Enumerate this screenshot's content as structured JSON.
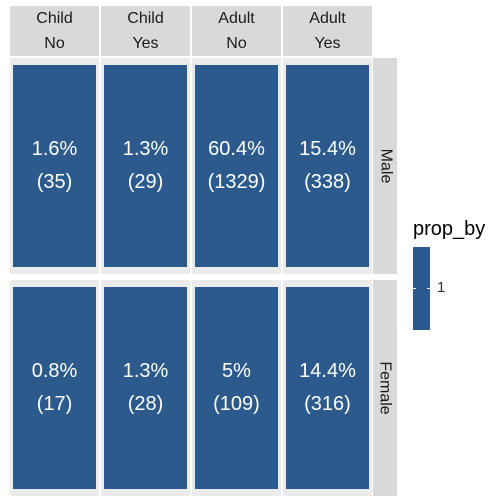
{
  "chart_data": {
    "type": "heatmap",
    "fill_color": "#2c5a8c",
    "columns": [
      {
        "line1": "Child",
        "line2": "No"
      },
      {
        "line1": "Child",
        "line2": "Yes"
      },
      {
        "line1": "Adult",
        "line2": "No"
      },
      {
        "line1": "Adult",
        "line2": "Yes"
      }
    ],
    "rows": [
      "Male",
      "Female"
    ],
    "cells": [
      [
        {
          "pct": "1.6%",
          "count": "(35)"
        },
        {
          "pct": "1.3%",
          "count": "(29)"
        },
        {
          "pct": "60.4%",
          "count": "(1329)"
        },
        {
          "pct": "15.4%",
          "count": "(338)"
        }
      ],
      [
        {
          "pct": "0.8%",
          "count": "(17)"
        },
        {
          "pct": "1.3%",
          "count": "(28)"
        },
        {
          "pct": "5%",
          "count": "(109)"
        },
        {
          "pct": "14.4%",
          "count": "(316)"
        }
      ]
    ],
    "values": [
      [
        35,
        29,
        1329,
        338
      ],
      [
        17,
        28,
        109,
        316
      ]
    ],
    "fill_value": 1,
    "legend": {
      "title": "prop_by",
      "ticks": [
        "1"
      ],
      "position": "right"
    }
  }
}
